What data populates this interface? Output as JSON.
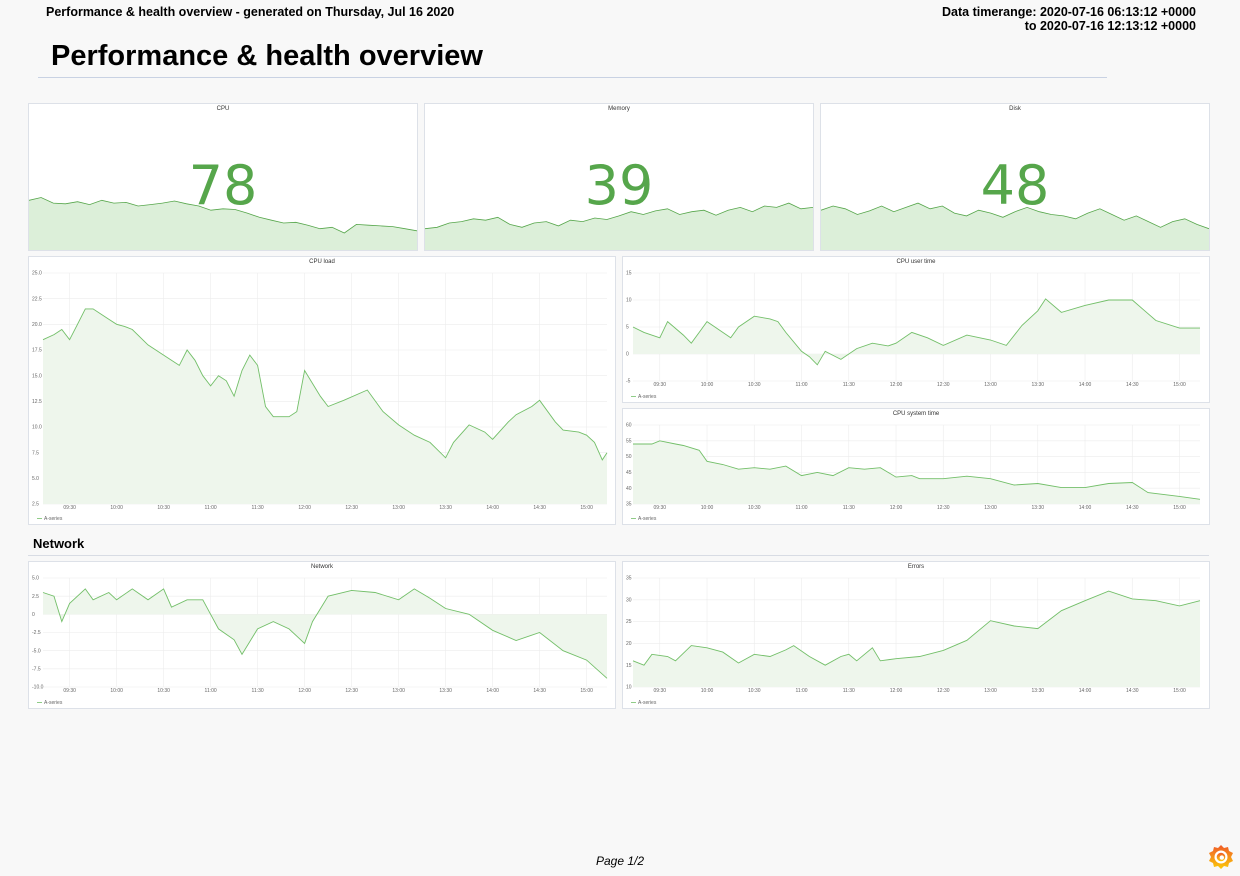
{
  "header": {
    "generated": "Performance & health overview - generated on Thursday, Jul 16 2020",
    "timerange_line1": "Data timerange: 2020-07-16 06:13:12 +0000",
    "timerange_line2": "to 2020-07-16 12:13:12 +0000"
  },
  "title": "Performance & health overview",
  "section_network": "Network",
  "footer": {
    "page": "Page 1/2"
  },
  "logo": {
    "name": "grafana-logo-icon"
  },
  "colors": {
    "accent": "#56a64b",
    "line": "#73bf69",
    "fill": "#e6f2e4",
    "grid": "#ececec"
  },
  "stats": [
    {
      "title": "CPU",
      "value": "78",
      "sparkline": [
        70,
        74,
        66,
        65,
        68,
        64,
        70,
        66,
        67,
        62,
        64,
        66,
        69,
        65,
        62,
        56,
        58,
        57,
        52,
        46,
        42,
        38,
        39,
        35,
        30,
        32,
        24,
        36,
        35,
        34,
        33,
        30,
        27
      ]
    },
    {
      "title": "Memory",
      "value": "39",
      "sparkline": [
        30,
        32,
        38,
        40,
        44,
        42,
        46,
        36,
        32,
        38,
        40,
        34,
        42,
        40,
        45,
        43,
        48,
        54,
        50,
        55,
        58,
        50,
        54,
        56,
        49,
        56,
        60,
        54,
        62,
        60,
        66,
        58,
        60
      ]
    },
    {
      "title": "Disk",
      "value": "48",
      "sparkline": [
        56,
        62,
        58,
        50,
        55,
        62,
        54,
        60,
        66,
        58,
        62,
        52,
        48,
        56,
        52,
        46,
        54,
        60,
        54,
        50,
        48,
        44,
        52,
        58,
        50,
        42,
        48,
        40,
        32,
        40,
        44,
        36,
        30
      ]
    }
  ],
  "chart_data": [
    {
      "type": "area",
      "title": "CPU load",
      "ylim": [
        2.5,
        25
      ],
      "y_ticks": [
        "25.0",
        "22.5",
        "20.0",
        "17.5",
        "15.0",
        "12.5",
        "10.0",
        "7.5",
        "5.0",
        "2.5"
      ],
      "x_ticks": [
        "09:30",
        "10:00",
        "10:30",
        "11:00",
        "11:30",
        "12:00",
        "12:30",
        "13:00",
        "13:30",
        "14:00",
        "14:30",
        "15:00"
      ],
      "xlim": [
        "09:13",
        "15:13"
      ],
      "grid": true,
      "legend": "bottom-left",
      "series": [
        {
          "name": "A-series",
          "points": [
            [
              "09:13",
              18.5
            ],
            [
              "09:20",
              19
            ],
            [
              "09:25",
              19.5
            ],
            [
              "09:30",
              18.5
            ],
            [
              "09:35",
              20
            ],
            [
              "09:40",
              21.5
            ],
            [
              "09:45",
              21.5
            ],
            [
              "09:50",
              21
            ],
            [
              "09:55",
              20.5
            ],
            [
              "10:00",
              20
            ],
            [
              "10:05",
              19.8
            ],
            [
              "10:10",
              19.5
            ],
            [
              "10:20",
              18
            ],
            [
              "10:25",
              17.5
            ],
            [
              "10:30",
              17
            ],
            [
              "10:40",
              16
            ],
            [
              "10:45",
              17.5
            ],
            [
              "10:50",
              16.5
            ],
            [
              "10:55",
              15
            ],
            [
              "11:00",
              14
            ],
            [
              "11:05",
              15
            ],
            [
              "11:10",
              14.5
            ],
            [
              "11:15",
              13
            ],
            [
              "11:20",
              15.5
            ],
            [
              "11:25",
              17
            ],
            [
              "11:30",
              16
            ],
            [
              "11:35",
              12
            ],
            [
              "11:40",
              11
            ],
            [
              "11:50",
              11
            ],
            [
              "11:55",
              11.5
            ],
            [
              "12:00",
              15.5
            ],
            [
              "12:10",
              13
            ],
            [
              "12:15",
              12
            ],
            [
              "12:25",
              12.6
            ],
            [
              "12:40",
              13.6
            ],
            [
              "12:50",
              11.5
            ],
            [
              "13:00",
              10.2
            ],
            [
              "13:10",
              9.2
            ],
            [
              "13:20",
              8.5
            ],
            [
              "13:30",
              7.0
            ],
            [
              "13:35",
              8.5
            ],
            [
              "13:45",
              10.2
            ],
            [
              "13:55",
              9.5
            ],
            [
              "14:00",
              8.8
            ],
            [
              "14:10",
              10.5
            ],
            [
              "14:15",
              11.2
            ],
            [
              "14:25",
              12
            ],
            [
              "14:30",
              12.6
            ],
            [
              "14:40",
              10.5
            ],
            [
              "14:45",
              9.7
            ],
            [
              "14:55",
              9.5
            ],
            [
              "15:00",
              9.2
            ],
            [
              "15:05",
              8.5
            ],
            [
              "15:10",
              6.8
            ],
            [
              "15:13",
              7.5
            ]
          ]
        }
      ]
    },
    {
      "type": "area",
      "title": "CPU user time",
      "ylim": [
        -5,
        15
      ],
      "y_ticks": [
        "15",
        "10",
        "5",
        "0",
        "-5"
      ],
      "x_ticks": [
        "09:30",
        "10:00",
        "10:30",
        "11:00",
        "11:30",
        "12:00",
        "12:30",
        "13:00",
        "13:30",
        "14:00",
        "14:30",
        "15:00"
      ],
      "xlim": [
        "09:13",
        "15:13"
      ],
      "grid": true,
      "legend": "bottom-left",
      "series": [
        {
          "name": "A-series",
          "points": [
            [
              "09:13",
              5
            ],
            [
              "09:20",
              4
            ],
            [
              "09:30",
              3
            ],
            [
              "09:35",
              6
            ],
            [
              "09:45",
              3.5
            ],
            [
              "09:50",
              2
            ],
            [
              "09:55",
              4
            ],
            [
              "10:00",
              6
            ],
            [
              "10:10",
              4
            ],
            [
              "10:15",
              3
            ],
            [
              "10:20",
              5
            ],
            [
              "10:30",
              7
            ],
            [
              "10:40",
              6.5
            ],
            [
              "10:45",
              6
            ],
            [
              "10:50",
              4
            ],
            [
              "11:00",
              0.5
            ],
            [
              "11:05",
              -0.5
            ],
            [
              "11:10",
              -2
            ],
            [
              "11:15",
              0.5
            ],
            [
              "11:25",
              -1
            ],
            [
              "11:35",
              1
            ],
            [
              "11:45",
              2
            ],
            [
              "11:55",
              1.5
            ],
            [
              "12:00",
              2
            ],
            [
              "12:10",
              4
            ],
            [
              "12:20",
              3
            ],
            [
              "12:30",
              1.6
            ],
            [
              "12:45",
              3.5
            ],
            [
              "13:00",
              2.6
            ],
            [
              "13:10",
              1.6
            ],
            [
              "13:20",
              5.3
            ],
            [
              "13:30",
              8
            ],
            [
              "13:35",
              10.2
            ],
            [
              "13:45",
              7.7
            ],
            [
              "14:00",
              9
            ],
            [
              "14:15",
              10
            ],
            [
              "14:30",
              10
            ],
            [
              "14:45",
              6.2
            ],
            [
              "15:00",
              4.8
            ],
            [
              "15:13",
              4.8
            ]
          ]
        }
      ]
    },
    {
      "type": "area",
      "title": "CPU system time",
      "ylim": [
        35,
        60
      ],
      "y_ticks": [
        "60",
        "55",
        "50",
        "45",
        "40",
        "35"
      ],
      "x_ticks": [
        "09:30",
        "10:00",
        "10:30",
        "11:00",
        "11:30",
        "12:00",
        "12:30",
        "13:00",
        "13:30",
        "14:00",
        "14:30",
        "15:00"
      ],
      "xlim": [
        "09:13",
        "15:13"
      ],
      "grid": true,
      "legend": "bottom-left",
      "series": [
        {
          "name": "A-series",
          "points": [
            [
              "09:13",
              54
            ],
            [
              "09:25",
              54
            ],
            [
              "09:30",
              55
            ],
            [
              "09:40",
              54
            ],
            [
              "09:45",
              53.5
            ],
            [
              "09:55",
              52
            ],
            [
              "10:00",
              48.5
            ],
            [
              "10:10",
              47.5
            ],
            [
              "10:20",
              46
            ],
            [
              "10:30",
              46.5
            ],
            [
              "10:40",
              46
            ],
            [
              "10:50",
              47
            ],
            [
              "11:00",
              44
            ],
            [
              "11:10",
              45
            ],
            [
              "11:20",
              44
            ],
            [
              "11:30",
              46.5
            ],
            [
              "11:40",
              46
            ],
            [
              "11:50",
              46.5
            ],
            [
              "12:00",
              43.5
            ],
            [
              "12:10",
              44
            ],
            [
              "12:15",
              43
            ],
            [
              "12:30",
              43
            ],
            [
              "12:45",
              43.8
            ],
            [
              "13:00",
              43
            ],
            [
              "13:15",
              41
            ],
            [
              "13:30",
              41.5
            ],
            [
              "13:45",
              40.2
            ],
            [
              "14:00",
              40.2
            ],
            [
              "14:15",
              41.5
            ],
            [
              "14:30",
              41.8
            ],
            [
              "14:40",
              38.6
            ],
            [
              "15:00",
              37.4
            ],
            [
              "15:13",
              36.5
            ]
          ]
        }
      ]
    },
    {
      "type": "area",
      "title": "Network",
      "ylim": [
        -10,
        5
      ],
      "y_ticks": [
        "5.0",
        "2.5",
        "0",
        "-2.5",
        "-5.0",
        "-7.5",
        "-10.0"
      ],
      "x_ticks": [
        "09:30",
        "10:00",
        "10:30",
        "11:00",
        "11:30",
        "12:00",
        "12:30",
        "13:00",
        "13:30",
        "14:00",
        "14:30",
        "15:00"
      ],
      "xlim": [
        "09:13",
        "15:13"
      ],
      "grid": true,
      "legend": "bottom-left",
      "series": [
        {
          "name": "A-series",
          "points": [
            [
              "09:13",
              3
            ],
            [
              "09:20",
              2.5
            ],
            [
              "09:25",
              -1
            ],
            [
              "09:30",
              1.5
            ],
            [
              "09:40",
              3.5
            ],
            [
              "09:45",
              2
            ],
            [
              "09:55",
              3
            ],
            [
              "10:00",
              2
            ],
            [
              "10:10",
              3.5
            ],
            [
              "10:20",
              2
            ],
            [
              "10:30",
              3.5
            ],
            [
              "10:35",
              1
            ],
            [
              "10:45",
              2
            ],
            [
              "10:55",
              2
            ],
            [
              "11:00",
              0
            ],
            [
              "11:05",
              -2
            ],
            [
              "11:15",
              -3.5
            ],
            [
              "11:20",
              -5.5
            ],
            [
              "11:30",
              -2
            ],
            [
              "11:40",
              -1
            ],
            [
              "11:50",
              -2
            ],
            [
              "12:00",
              -4
            ],
            [
              "12:05",
              -1
            ],
            [
              "12:15",
              2.5
            ],
            [
              "12:30",
              3.3
            ],
            [
              "12:45",
              3
            ],
            [
              "13:00",
              2
            ],
            [
              "13:10",
              3.5
            ],
            [
              "13:20",
              2.2
            ],
            [
              "13:30",
              0.8
            ],
            [
              "13:45",
              0
            ],
            [
              "14:00",
              -2.2
            ],
            [
              "14:15",
              -3.6
            ],
            [
              "14:30",
              -2.5
            ],
            [
              "14:45",
              -5
            ],
            [
              "15:00",
              -6.3
            ],
            [
              "15:13",
              -8.8
            ]
          ]
        }
      ]
    },
    {
      "type": "area",
      "title": "Errors",
      "ylim": [
        10,
        35
      ],
      "y_ticks": [
        "35",
        "30",
        "25",
        "20",
        "15",
        "10"
      ],
      "x_ticks": [
        "09:30",
        "10:00",
        "10:30",
        "11:00",
        "11:30",
        "12:00",
        "12:30",
        "13:00",
        "13:30",
        "14:00",
        "14:30",
        "15:00"
      ],
      "xlim": [
        "09:13",
        "15:13"
      ],
      "grid": true,
      "legend": "bottom-left",
      "series": [
        {
          "name": "A-series",
          "points": [
            [
              "09:13",
              16
            ],
            [
              "09:20",
              15
            ],
            [
              "09:25",
              17.5
            ],
            [
              "09:35",
              17
            ],
            [
              "09:40",
              16
            ],
            [
              "09:50",
              19.5
            ],
            [
              "10:00",
              19
            ],
            [
              "10:10",
              18
            ],
            [
              "10:20",
              15.5
            ],
            [
              "10:30",
              17.5
            ],
            [
              "10:40",
              17
            ],
            [
              "10:50",
              18.5
            ],
            [
              "10:55",
              19.5
            ],
            [
              "11:05",
              17
            ],
            [
              "11:15",
              15
            ],
            [
              "11:25",
              17
            ],
            [
              "11:30",
              17.5
            ],
            [
              "11:35",
              16
            ],
            [
              "11:45",
              19
            ],
            [
              "11:50",
              16
            ],
            [
              "12:00",
              16.5
            ],
            [
              "12:15",
              17
            ],
            [
              "12:30",
              18.4
            ],
            [
              "12:45",
              20.7
            ],
            [
              "13:00",
              25.2
            ],
            [
              "13:15",
              24
            ],
            [
              "13:30",
              23.4
            ],
            [
              "13:45",
              27.5
            ],
            [
              "14:00",
              29.8
            ],
            [
              "14:15",
              32
            ],
            [
              "14:30",
              30.2
            ],
            [
              "14:45",
              29.8
            ],
            [
              "15:00",
              28.6
            ],
            [
              "15:13",
              29.8
            ]
          ]
        }
      ]
    }
  ]
}
